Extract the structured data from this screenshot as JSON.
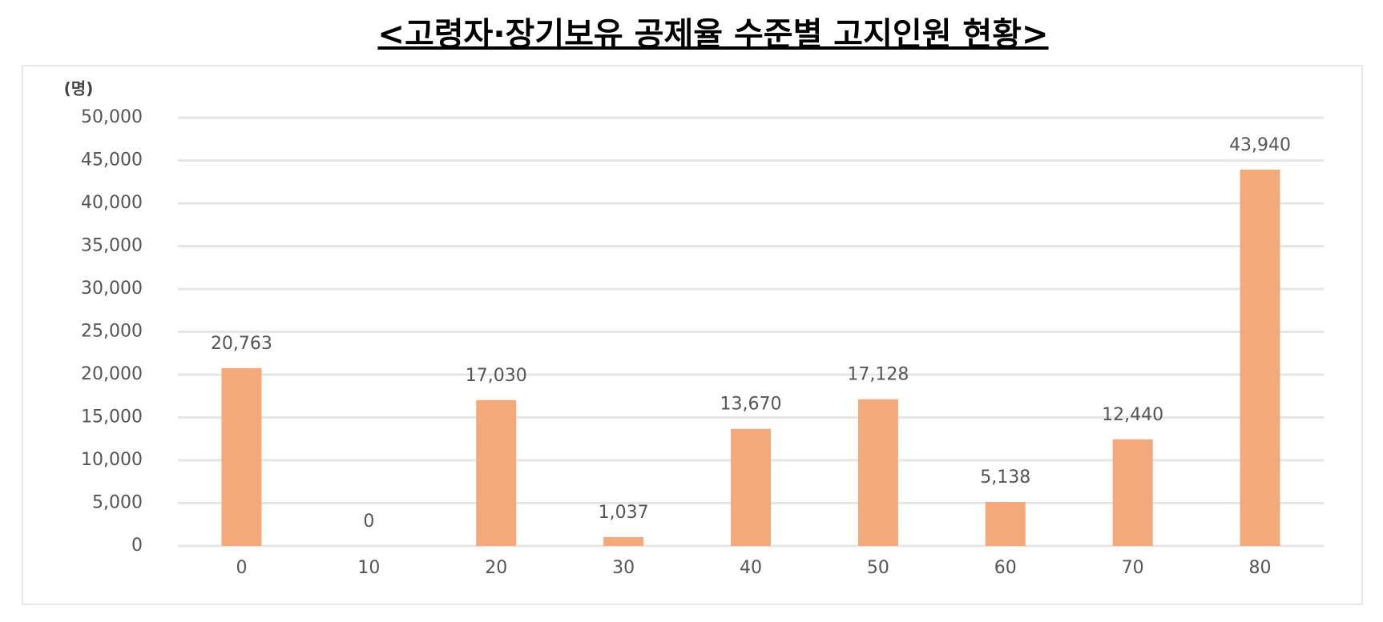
{
  "chart_data": {
    "type": "bar",
    "title": "<고령자·장기보유 공제율 수준별 고지인원 현황>",
    "y_unit": "(명)",
    "categories": [
      "0",
      "10",
      "20",
      "30",
      "40",
      "50",
      "60",
      "70",
      "80"
    ],
    "values": [
      20763,
      0,
      17030,
      1037,
      13670,
      17128,
      5138,
      12440,
      43940
    ],
    "value_labels": [
      "20,763",
      "0",
      "17,030",
      "1,037",
      "13,670",
      "17,128",
      "5,138",
      "12,440",
      "43,940"
    ],
    "color": "#f4a97a",
    "ylim": [
      0,
      50000
    ],
    "yticks": [
      0,
      {
        "value": 5000,
        "label": "5,000"
      },
      {
        "value": 10000,
        "label": "10,000"
      },
      {
        "value": 15000,
        "label": "15,000"
      },
      {
        "value": 20000,
        "label": "20,000"
      },
      {
        "value": 25000,
        "label": "25,000"
      },
      {
        "value": 30000,
        "label": "30,000"
      },
      {
        "value": 35000,
        "label": "35,000"
      },
      {
        "value": 40000,
        "label": "40,000"
      },
      {
        "value": 45000,
        "label": "45,000"
      },
      {
        "value": 50000,
        "label": "50,000"
      }
    ],
    "grid": true
  }
}
